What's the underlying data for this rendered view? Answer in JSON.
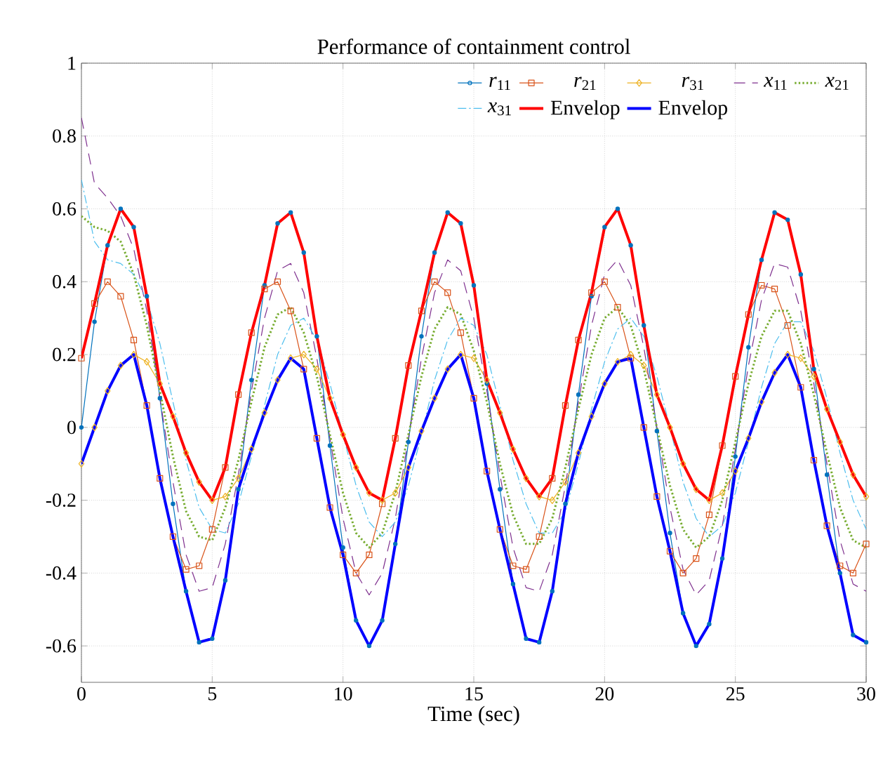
{
  "chart_data": {
    "type": "line",
    "title": "Performance of containment control",
    "xlabel": "Time (sec)",
    "x": [
      0,
      0.5,
      1,
      1.5,
      2,
      2.5,
      3,
      3.5,
      4,
      4.5,
      5,
      5.5,
      6,
      6.5,
      7,
      7.5,
      8,
      8.5,
      9,
      9.5,
      10,
      10.5,
      11,
      11.5,
      12,
      12.5,
      13,
      13.5,
      14,
      14.5,
      15,
      15.5,
      16,
      16.5,
      17,
      17.5,
      18,
      18.5,
      19,
      19.5,
      20,
      20.5,
      21,
      21.5,
      22,
      22.5,
      23,
      23.5,
      24,
      24.5,
      25,
      25.5,
      26,
      26.5,
      27,
      27.5,
      28,
      28.5,
      29,
      29.5,
      30
    ],
    "xlim": [
      0,
      30
    ],
    "xticks": [
      0,
      5,
      10,
      15,
      20,
      25,
      30
    ],
    "ylim": [
      -0.7,
      1
    ],
    "yticks": [
      -0.6,
      -0.4,
      -0.2,
      0,
      0.2,
      0.4,
      0.6,
      0.8,
      1
    ],
    "grid": true,
    "legend": "top right",
    "series": [
      {
        "name": "*r*$_{11}$",
        "color": "#0072bd",
        "marker": "circle",
        "line_style": "solid",
        "values": [
          0,
          0.29,
          0.5,
          0.6,
          0.55,
          0.36,
          0.08,
          -0.21,
          -0.45,
          -0.59,
          -0.58,
          -0.42,
          -0.17,
          0.13,
          0.39,
          0.56,
          0.59,
          0.48,
          0.25,
          -0.05,
          -0.33,
          -0.53,
          -0.6,
          -0.53,
          -0.32,
          -0.04,
          0.25,
          0.48,
          0.59,
          0.56,
          0.39,
          0.12,
          -0.17,
          -0.43,
          -0.58,
          -0.59,
          -0.45,
          -0.21,
          0.09,
          0.36,
          0.55,
          0.6,
          0.5,
          0.28,
          -0.01,
          -0.29,
          -0.51,
          -0.6,
          -0.54,
          -0.36,
          -0.08,
          0.22,
          0.46,
          0.59,
          0.57,
          0.42,
          0.16,
          -0.13,
          -0.4,
          -0.57,
          -0.59
        ]
      },
      {
        "name": "*r*$_{21}$",
        "color": "#d95319",
        "marker": "square",
        "line_style": "solid",
        "values": [
          0.19,
          0.34,
          0.4,
          0.36,
          0.24,
          0.06,
          -0.14,
          -0.3,
          -0.39,
          -0.38,
          -0.28,
          -0.11,
          0.09,
          0.26,
          0.38,
          0.4,
          0.32,
          0.16,
          -0.03,
          -0.22,
          -0.35,
          -0.4,
          -0.35,
          -0.21,
          -0.03,
          0.17,
          0.32,
          0.4,
          0.37,
          0.26,
          0.08,
          -0.12,
          -0.28,
          -0.38,
          -0.39,
          -0.3,
          -0.14,
          0.06,
          0.24,
          0.37,
          0.4,
          0.33,
          0.19,
          0.0,
          -0.19,
          -0.34,
          -0.4,
          -0.36,
          -0.24,
          -0.05,
          0.14,
          0.31,
          0.39,
          0.38,
          0.28,
          0.11,
          -0.09,
          -0.27,
          -0.38,
          -0.4,
          -0.32
        ]
      },
      {
        "name": "*r*$_{31}$",
        "color": "#edb120",
        "marker": "diamond",
        "line_style": "solid",
        "values": [
          -0.1,
          0,
          0.1,
          0.17,
          0.2,
          0.18,
          0.12,
          0.03,
          -0.07,
          -0.15,
          -0.2,
          -0.19,
          -0.14,
          -0.06,
          0.04,
          0.13,
          0.19,
          0.2,
          0.16,
          0.08,
          -0.02,
          -0.11,
          -0.18,
          -0.2,
          -0.18,
          -0.11,
          -0.01,
          0.08,
          0.16,
          0.2,
          0.19,
          0.13,
          0.04,
          -0.06,
          -0.14,
          -0.19,
          -0.2,
          -0.15,
          -0.07,
          0.03,
          0.12,
          0.18,
          0.2,
          0.17,
          0.09,
          0.0,
          -0.1,
          -0.17,
          -0.2,
          -0.18,
          -0.12,
          -0.03,
          0.07,
          0.15,
          0.2,
          0.19,
          0.14,
          0.05,
          -0.04,
          -0.13,
          -0.19
        ]
      },
      {
        "name": "*x*$_{11}$",
        "color": "#7e2f8e",
        "marker": "none",
        "line_style": "dashed",
        "values": [
          0.85,
          0.67,
          0.63,
          0.58,
          0.49,
          0.32,
          0.08,
          -0.15,
          -0.35,
          -0.45,
          -0.44,
          -0.32,
          -0.13,
          0.1,
          0.3,
          0.43,
          0.45,
          0.37,
          0.19,
          -0.03,
          -0.25,
          -0.4,
          -0.46,
          -0.4,
          -0.25,
          -0.03,
          0.19,
          0.37,
          0.46,
          0.43,
          0.3,
          0.1,
          -0.13,
          -0.33,
          -0.44,
          -0.45,
          -0.35,
          -0.16,
          0.07,
          0.28,
          0.42,
          0.46,
          0.39,
          0.22,
          0.0,
          -0.22,
          -0.39,
          -0.46,
          -0.42,
          -0.27,
          -0.06,
          0.17,
          0.35,
          0.45,
          0.44,
          0.32,
          0.12,
          -0.1,
          -0.31,
          -0.43,
          -0.45
        ]
      },
      {
        "name": "*x*$_{21}$",
        "color": "#77ac30",
        "marker": "none",
        "line_style": "dotted",
        "values": [
          0.58,
          0.55,
          0.54,
          0.51,
          0.42,
          0.28,
          0.1,
          -0.08,
          -0.23,
          -0.3,
          -0.31,
          -0.22,
          -0.09,
          0.07,
          0.22,
          0.31,
          0.33,
          0.26,
          0.14,
          -0.02,
          -0.18,
          -0.29,
          -0.33,
          -0.29,
          -0.18,
          -0.02,
          0.14,
          0.27,
          0.33,
          0.31,
          0.21,
          0.07,
          -0.1,
          -0.24,
          -0.32,
          -0.32,
          -0.25,
          -0.11,
          0.05,
          0.2,
          0.3,
          0.33,
          0.28,
          0.16,
          0.0,
          -0.16,
          -0.28,
          -0.33,
          -0.3,
          -0.2,
          -0.04,
          0.12,
          0.25,
          0.32,
          0.32,
          0.23,
          0.09,
          -0.07,
          -0.22,
          -0.31,
          -0.33
        ]
      },
      {
        "name": "*x*$_{31}$",
        "color": "#4dbeee",
        "marker": "none",
        "line_style": "dashdot",
        "values": [
          0.68,
          0.51,
          0.46,
          0.45,
          0.42,
          0.35,
          0.23,
          0.07,
          -0.09,
          -0.22,
          -0.28,
          -0.29,
          -0.21,
          -0.08,
          0.06,
          0.2,
          0.28,
          0.3,
          0.24,
          0.12,
          -0.02,
          -0.16,
          -0.26,
          -0.3,
          -0.26,
          -0.16,
          -0.02,
          0.13,
          0.24,
          0.3,
          0.28,
          0.2,
          0.06,
          -0.09,
          -0.21,
          -0.29,
          -0.29,
          -0.23,
          -0.1,
          0.05,
          0.18,
          0.27,
          0.3,
          0.25,
          0.14,
          0.0,
          -0.15,
          -0.25,
          -0.3,
          -0.27,
          -0.18,
          -0.04,
          0.11,
          0.23,
          0.29,
          0.29,
          0.21,
          0.08,
          -0.07,
          -0.2,
          -0.28
        ]
      },
      {
        "name": "Envelop",
        "color": "#ff0000",
        "marker": "none",
        "line_style": "solid",
        "values": [
          0.19,
          0.34,
          0.5,
          0.6,
          0.55,
          0.36,
          0.12,
          0.03,
          -0.07,
          -0.15,
          -0.2,
          -0.11,
          0.09,
          0.26,
          0.39,
          0.56,
          0.59,
          0.48,
          0.25,
          0.08,
          -0.02,
          -0.11,
          -0.18,
          -0.2,
          -0.03,
          0.17,
          0.32,
          0.48,
          0.59,
          0.56,
          0.39,
          0.13,
          0.04,
          -0.06,
          -0.14,
          -0.19,
          -0.14,
          0.06,
          0.24,
          0.37,
          0.55,
          0.6,
          0.5,
          0.28,
          0.09,
          0.0,
          -0.1,
          -0.17,
          -0.2,
          -0.05,
          0.14,
          0.31,
          0.46,
          0.59,
          0.57,
          0.42,
          0.16,
          0.05,
          -0.04,
          -0.13,
          -0.19
        ]
      },
      {
        "name": "Envelop",
        "color": "#0000ff",
        "marker": "none",
        "line_style": "solid",
        "values": [
          -0.1,
          0,
          0.1,
          0.17,
          0.2,
          0.06,
          -0.14,
          -0.3,
          -0.45,
          -0.59,
          -0.58,
          -0.42,
          -0.17,
          -0.06,
          0.04,
          0.13,
          0.19,
          0.16,
          -0.03,
          -0.22,
          -0.35,
          -0.53,
          -0.6,
          -0.53,
          -0.32,
          -0.11,
          -0.01,
          0.08,
          0.16,
          0.2,
          0.08,
          -0.12,
          -0.28,
          -0.43,
          -0.58,
          -0.59,
          -0.45,
          -0.21,
          -0.07,
          0.03,
          0.12,
          0.18,
          0.19,
          0.0,
          -0.19,
          -0.34,
          -0.51,
          -0.6,
          -0.54,
          -0.36,
          -0.12,
          -0.03,
          0.07,
          0.15,
          0.2,
          0.11,
          -0.09,
          -0.27,
          -0.4,
          -0.57,
          -0.59
        ]
      }
    ]
  }
}
